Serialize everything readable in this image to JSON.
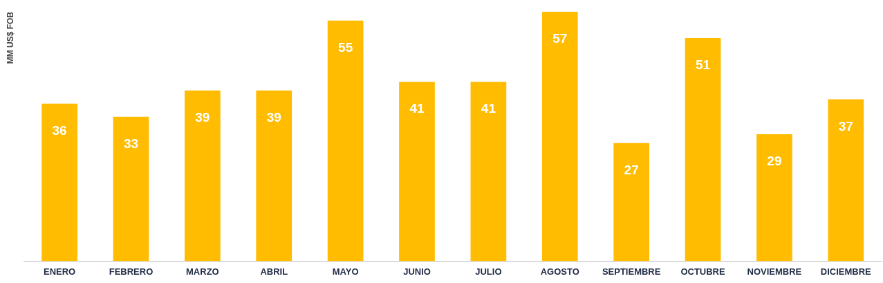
{
  "chart_data": {
    "type": "bar",
    "ylabel": "MM US$ FOB",
    "categories": [
      "ENERO",
      "FEBRERO",
      "MARZO",
      "ABRIL",
      "MAYO",
      "JUNIO",
      "JULIO",
      "AGOSTO",
      "SEPTIEMBRE",
      "OCTUBRE",
      "NOVIEMBRE",
      "DICIEMBRE"
    ],
    "values": [
      36,
      33,
      39,
      39,
      55,
      41,
      41,
      57,
      27,
      51,
      29,
      37
    ],
    "color": "#ffbc00",
    "data_labels": true,
    "tick_labels": "x",
    "grid": false,
    "legend": false
  }
}
